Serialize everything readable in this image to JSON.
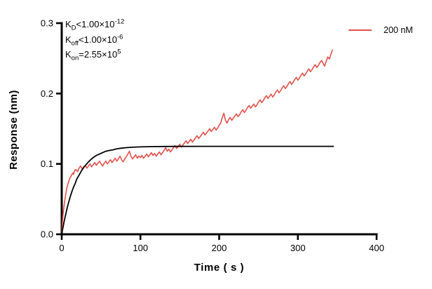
{
  "chart_data": {
    "type": "line",
    "title": "",
    "xlabel": "Time ( s )",
    "ylabel": "Response (nm)",
    "xlim": [
      0,
      400
    ],
    "ylim": [
      0,
      0.3
    ],
    "xticks": [
      0,
      100,
      200,
      300,
      400
    ],
    "yticks": [
      0,
      0.1,
      0.2,
      0.3
    ],
    "grid": false,
    "legend_position": "top-right",
    "legend": [
      {
        "label": "200 nM",
        "color": "#e2504a"
      }
    ],
    "annotations": [
      {
        "pre": "K",
        "sub": "D",
        "mid": "<1.00×10",
        "sup": "-12"
      },
      {
        "pre": "K",
        "sub": "off",
        "mid": "<1.00×10",
        "sup": "-6"
      },
      {
        "pre": "K",
        "sub": "on",
        "mid": "=2.55×10",
        "sup": "5"
      }
    ],
    "series": [
      {
        "name": "200 nM",
        "kind": "measured",
        "color": "#e2504a",
        "width": 1.6,
        "points": [
          [
            0,
            0
          ],
          [
            1,
            0.018
          ],
          [
            2,
            0.031
          ],
          [
            3,
            0.041
          ],
          [
            4,
            0.049
          ],
          [
            5,
            0.056
          ],
          [
            6,
            0.063
          ],
          [
            7,
            0.068
          ],
          [
            8,
            0.072
          ],
          [
            9,
            0.075
          ],
          [
            10,
            0.079
          ],
          [
            12,
            0.083
          ],
          [
            14,
            0.087
          ],
          [
            15,
            0.085
          ],
          [
            16,
            0.09
          ],
          [
            18,
            0.092
          ],
          [
            20,
            0.089
          ],
          [
            22,
            0.094
          ],
          [
            24,
            0.097
          ],
          [
            26,
            0.093
          ],
          [
            28,
            0.096
          ],
          [
            30,
            0.098
          ],
          [
            32,
            0.094
          ],
          [
            34,
            0.097
          ],
          [
            36,
            0.1
          ],
          [
            38,
            0.096
          ],
          [
            40,
            0.099
          ],
          [
            42,
            0.102
          ],
          [
            44,
            0.098
          ],
          [
            46,
            0.101
          ],
          [
            48,
            0.104
          ],
          [
            50,
            0.1
          ],
          [
            52,
            0.097
          ],
          [
            54,
            0.101
          ],
          [
            56,
            0.104
          ],
          [
            58,
            0.1
          ],
          [
            60,
            0.103
          ],
          [
            62,
            0.106
          ],
          [
            64,
            0.102
          ],
          [
            66,
            0.105
          ],
          [
            68,
            0.108
          ],
          [
            70,
            0.104
          ],
          [
            72,
            0.107
          ],
          [
            74,
            0.111
          ],
          [
            76,
            0.106
          ],
          [
            78,
            0.103
          ],
          [
            80,
            0.107
          ],
          [
            82,
            0.11
          ],
          [
            84,
            0.114
          ],
          [
            86,
            0.118
          ],
          [
            88,
            0.111
          ],
          [
            90,
            0.107
          ],
          [
            92,
            0.11
          ],
          [
            94,
            0.113
          ],
          [
            96,
            0.108
          ],
          [
            98,
            0.111
          ],
          [
            100,
            0.109
          ],
          [
            102,
            0.112
          ],
          [
            104,
            0.108
          ],
          [
            106,
            0.111
          ],
          [
            108,
            0.114
          ],
          [
            110,
            0.11
          ],
          [
            112,
            0.113
          ],
          [
            114,
            0.116
          ],
          [
            116,
            0.112
          ],
          [
            118,
            0.115
          ],
          [
            120,
            0.111
          ],
          [
            122,
            0.114
          ],
          [
            124,
            0.117
          ],
          [
            126,
            0.113
          ],
          [
            128,
            0.116
          ],
          [
            130,
            0.119
          ],
          [
            132,
            0.123
          ],
          [
            134,
            0.118
          ],
          [
            136,
            0.121
          ],
          [
            138,
            0.117
          ],
          [
            140,
            0.12
          ],
          [
            142,
            0.123
          ],
          [
            144,
            0.126
          ],
          [
            146,
            0.122
          ],
          [
            148,
            0.125
          ],
          [
            150,
            0.128
          ],
          [
            152,
            0.124
          ],
          [
            154,
            0.127
          ],
          [
            156,
            0.13
          ],
          [
            158,
            0.133
          ],
          [
            160,
            0.129
          ],
          [
            162,
            0.132
          ],
          [
            164,
            0.135
          ],
          [
            166,
            0.131
          ],
          [
            168,
            0.134
          ],
          [
            170,
            0.137
          ],
          [
            172,
            0.14
          ],
          [
            174,
            0.136
          ],
          [
            176,
            0.139
          ],
          [
            178,
            0.142
          ],
          [
            180,
            0.145
          ],
          [
            182,
            0.141
          ],
          [
            184,
            0.144
          ],
          [
            186,
            0.147
          ],
          [
            188,
            0.15
          ],
          [
            190,
            0.146
          ],
          [
            192,
            0.149
          ],
          [
            194,
            0.152
          ],
          [
            196,
            0.148
          ],
          [
            198,
            0.151
          ],
          [
            200,
            0.155
          ],
          [
            202,
            0.158
          ],
          [
            204,
            0.166
          ],
          [
            206,
            0.172
          ],
          [
            208,
            0.162
          ],
          [
            210,
            0.158
          ],
          [
            212,
            0.163
          ],
          [
            214,
            0.166
          ],
          [
            216,
            0.162
          ],
          [
            218,
            0.165
          ],
          [
            220,
            0.168
          ],
          [
            222,
            0.171
          ],
          [
            224,
            0.167
          ],
          [
            226,
            0.17
          ],
          [
            228,
            0.174
          ],
          [
            230,
            0.177
          ],
          [
            232,
            0.173
          ],
          [
            234,
            0.176
          ],
          [
            236,
            0.18
          ],
          [
            238,
            0.183
          ],
          [
            240,
            0.179
          ],
          [
            242,
            0.182
          ],
          [
            244,
            0.185
          ],
          [
            246,
            0.181
          ],
          [
            248,
            0.184
          ],
          [
            250,
            0.188
          ],
          [
            252,
            0.191
          ],
          [
            254,
            0.187
          ],
          [
            256,
            0.19
          ],
          [
            258,
            0.194
          ],
          [
            260,
            0.197
          ],
          [
            262,
            0.193
          ],
          [
            264,
            0.196
          ],
          [
            266,
            0.199
          ],
          [
            268,
            0.195
          ],
          [
            270,
            0.198
          ],
          [
            272,
            0.202
          ],
          [
            274,
            0.205
          ],
          [
            276,
            0.201
          ],
          [
            278,
            0.204
          ],
          [
            280,
            0.208
          ],
          [
            282,
            0.211
          ],
          [
            284,
            0.207
          ],
          [
            286,
            0.21
          ],
          [
            288,
            0.214
          ],
          [
            290,
            0.217
          ],
          [
            292,
            0.213
          ],
          [
            294,
            0.216
          ],
          [
            296,
            0.22
          ],
          [
            298,
            0.223
          ],
          [
            300,
            0.219
          ],
          [
            302,
            0.222
          ],
          [
            304,
            0.226
          ],
          [
            306,
            0.229
          ],
          [
            308,
            0.225
          ],
          [
            310,
            0.228
          ],
          [
            312,
            0.232
          ],
          [
            314,
            0.235
          ],
          [
            316,
            0.231
          ],
          [
            318,
            0.234
          ],
          [
            320,
            0.238
          ],
          [
            322,
            0.241
          ],
          [
            324,
            0.237
          ],
          [
            326,
            0.24
          ],
          [
            328,
            0.244
          ],
          [
            330,
            0.247
          ],
          [
            332,
            0.243
          ],
          [
            334,
            0.239
          ],
          [
            336,
            0.246
          ],
          [
            338,
            0.252
          ],
          [
            340,
            0.249
          ],
          [
            342,
            0.256
          ],
          [
            344,
            0.262
          ]
        ]
      },
      {
        "name": "fit",
        "kind": "fit",
        "color": "#000000",
        "width": 1.8,
        "points": [
          [
            0,
            0
          ],
          [
            1,
            0.006
          ],
          [
            3,
            0.018
          ],
          [
            5,
            0.028
          ],
          [
            7,
            0.038
          ],
          [
            9,
            0.046
          ],
          [
            11,
            0.054
          ],
          [
            13,
            0.061
          ],
          [
            15,
            0.067
          ],
          [
            17,
            0.072
          ],
          [
            19,
            0.078
          ],
          [
            22,
            0.084
          ],
          [
            25,
            0.09
          ],
          [
            28,
            0.095
          ],
          [
            31,
            0.099
          ],
          [
            34,
            0.103
          ],
          [
            37,
            0.106
          ],
          [
            40,
            0.109
          ],
          [
            44,
            0.112
          ],
          [
            48,
            0.114
          ],
          [
            52,
            0.116
          ],
          [
            56,
            0.118
          ],
          [
            60,
            0.119
          ],
          [
            65,
            0.12
          ],
          [
            70,
            0.1215
          ],
          [
            76,
            0.1224
          ],
          [
            82,
            0.1231
          ],
          [
            90,
            0.1237
          ],
          [
            100,
            0.1242
          ],
          [
            115,
            0.1246
          ],
          [
            130,
            0.1248
          ],
          [
            150,
            0.1249
          ],
          [
            180,
            0.125
          ],
          [
            220,
            0.125
          ],
          [
            260,
            0.125
          ],
          [
            300,
            0.125
          ],
          [
            345,
            0.125
          ]
        ]
      }
    ]
  }
}
